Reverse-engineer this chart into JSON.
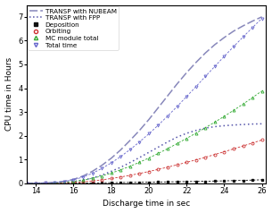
{
  "x": [
    13.5,
    14.0,
    14.5,
    15.0,
    15.5,
    16.0,
    16.5,
    17.0,
    17.5,
    18.0,
    18.5,
    19.0,
    19.5,
    20.0,
    20.5,
    21.0,
    21.5,
    22.0,
    22.5,
    23.0,
    23.5,
    24.0,
    24.5,
    25.0,
    25.5,
    26.0
  ],
  "nubeam_total": [
    0.0,
    0.0,
    0.01,
    0.03,
    0.08,
    0.16,
    0.3,
    0.5,
    0.75,
    1.05,
    1.4,
    1.8,
    2.22,
    2.68,
    3.18,
    3.68,
    4.18,
    4.65,
    5.08,
    5.48,
    5.83,
    6.13,
    6.4,
    6.62,
    6.82,
    7.0
  ],
  "fpp_total": [
    0.0,
    0.0,
    0.005,
    0.015,
    0.035,
    0.07,
    0.13,
    0.22,
    0.34,
    0.5,
    0.67,
    0.87,
    1.08,
    1.3,
    1.52,
    1.74,
    1.94,
    2.1,
    2.22,
    2.32,
    2.38,
    2.42,
    2.45,
    2.47,
    2.49,
    2.5
  ],
  "deposition": [
    0.0,
    0.0,
    0.001,
    0.002,
    0.004,
    0.007,
    0.01,
    0.014,
    0.018,
    0.023,
    0.028,
    0.033,
    0.038,
    0.044,
    0.05,
    0.056,
    0.062,
    0.069,
    0.076,
    0.083,
    0.091,
    0.1,
    0.11,
    0.12,
    0.132,
    0.145
  ],
  "orbiting": [
    0.0,
    0.0,
    0.003,
    0.008,
    0.018,
    0.035,
    0.06,
    0.095,
    0.142,
    0.198,
    0.262,
    0.333,
    0.41,
    0.494,
    0.583,
    0.677,
    0.775,
    0.877,
    0.984,
    1.094,
    1.208,
    1.325,
    1.445,
    1.568,
    1.692,
    1.818
  ],
  "mc_total": [
    0.0,
    0.0,
    0.005,
    0.015,
    0.038,
    0.075,
    0.13,
    0.205,
    0.305,
    0.425,
    0.563,
    0.715,
    0.882,
    1.062,
    1.255,
    1.458,
    1.668,
    1.885,
    2.108,
    2.335,
    2.57,
    2.815,
    3.068,
    3.33,
    3.602,
    3.882
  ],
  "total_nubeam_fpp": [
    0.0,
    0.0,
    0.01,
    0.03,
    0.075,
    0.145,
    0.26,
    0.418,
    0.62,
    0.855,
    1.12,
    1.415,
    1.735,
    2.08,
    2.445,
    2.83,
    3.23,
    3.645,
    4.065,
    4.49,
    4.915,
    5.335,
    5.748,
    6.152,
    6.548,
    6.935
  ],
  "nubeam_color": "#9999cc",
  "fpp_color": "#5555aa",
  "deposition_color": "#222222",
  "orbiting_color": "#cc3333",
  "mc_total_color": "#33aa33",
  "total_time_color": "#6666cc",
  "xlim": [
    13.5,
    26.2
  ],
  "ylim": [
    0,
    7.5
  ],
  "yticks": [
    0,
    1,
    2,
    3,
    4,
    5,
    6,
    7
  ],
  "xticks": [
    14,
    16,
    18,
    20,
    22,
    24,
    26
  ],
  "xlabel": "Discharge time in sec",
  "ylabel": "CPU time in Hours",
  "legend_nubeam": "TRANSP with NUBEAM",
  "legend_fpp": "TRANSP with FPP",
  "legend_deposition": "Deposition",
  "legend_orbiting": "Orbiting",
  "legend_mc": "MC module total",
  "legend_total": "Total time"
}
